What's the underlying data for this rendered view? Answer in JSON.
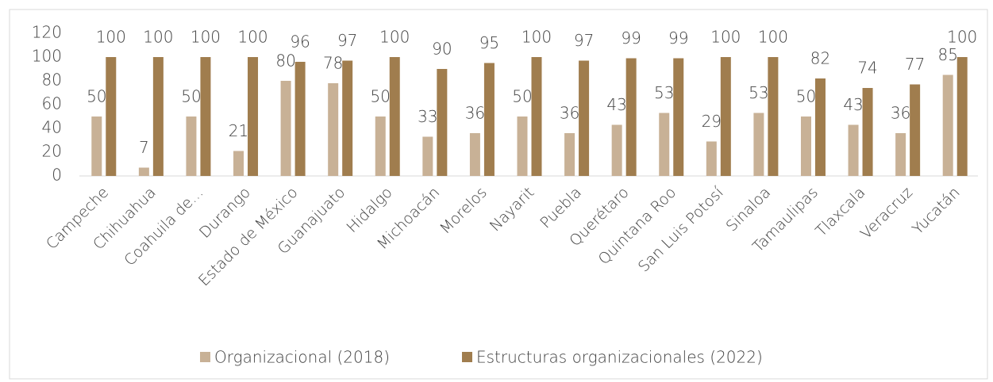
{
  "chart_data": {
    "type": "bar",
    "categories": [
      "Campeche",
      "Chihuahua",
      "Coahuila de...",
      "Durango",
      "Estado de México",
      "Guanajuato",
      "Hidalgo",
      "Michoacán",
      "Morelos",
      "Nayarit",
      "Puebla",
      "Querétaro",
      "Quintana Roo",
      "San Luis Potosí",
      "Sinaloa",
      "Tamaulipas",
      "Tlaxcala",
      "Veracruz",
      "Yucatán"
    ],
    "series": [
      {
        "name": "Organizacional (2018)",
        "color": "#c8b196",
        "values": [
          50,
          7,
          50,
          21,
          80,
          78,
          50,
          33,
          36,
          50,
          36,
          43,
          53,
          29,
          53,
          50,
          43,
          36,
          85
        ]
      },
      {
        "name": "Estructuras organizacionales (2022)",
        "color": "#a07d4e",
        "values": [
          100,
          100,
          100,
          100,
          96,
          97,
          100,
          90,
          95,
          100,
          97,
          99,
          99,
          100,
          100,
          82,
          74,
          77,
          100
        ]
      }
    ],
    "ylim": [
      0,
      120
    ],
    "yticks": [
      0,
      20,
      40,
      60,
      80,
      100,
      120
    ],
    "grid": false,
    "legend": "bottom"
  }
}
